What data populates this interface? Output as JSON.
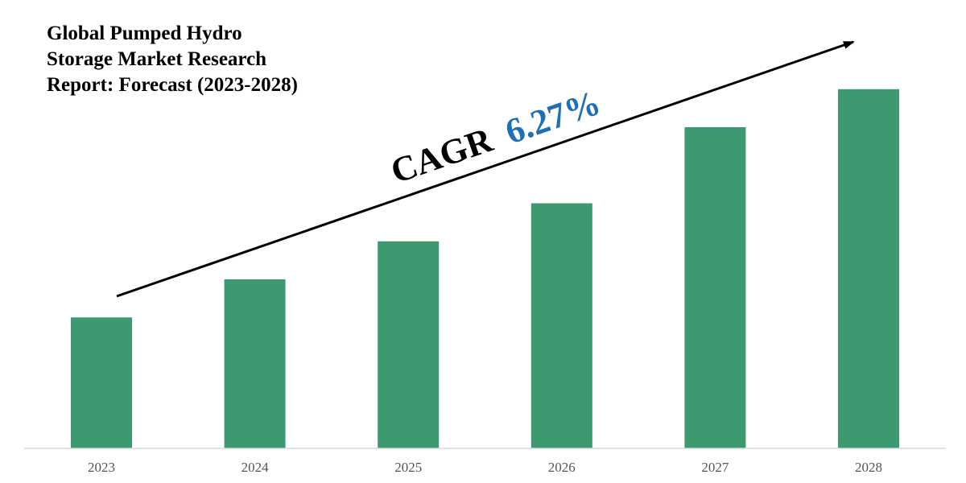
{
  "colors": {
    "bar": "#3d9970",
    "axis": "#d9d9d9",
    "arrow": "#000000",
    "cagr_label": "#000000",
    "cagr_value": "#1f6fb5",
    "tick_text": "#555555"
  },
  "annotation": {
    "cagr_label": "CAGR",
    "cagr_value": "6.27%"
  },
  "chart_data": {
    "type": "bar",
    "title_lines": [
      "Global Pumped Hydro",
      "Storage Market Research",
      "Report: Forecast (2023-2028)"
    ],
    "categories": [
      "2023",
      "2024",
      "2025",
      "2026",
      "2027",
      "2028"
    ],
    "values": [
      31,
      40,
      49,
      58,
      76,
      85
    ],
    "xlabel": "",
    "ylabel": "",
    "ylim": [
      0,
      100
    ],
    "grid": false,
    "legend": "none",
    "value_axis_shown": false,
    "values_note_type": "relative"
  }
}
